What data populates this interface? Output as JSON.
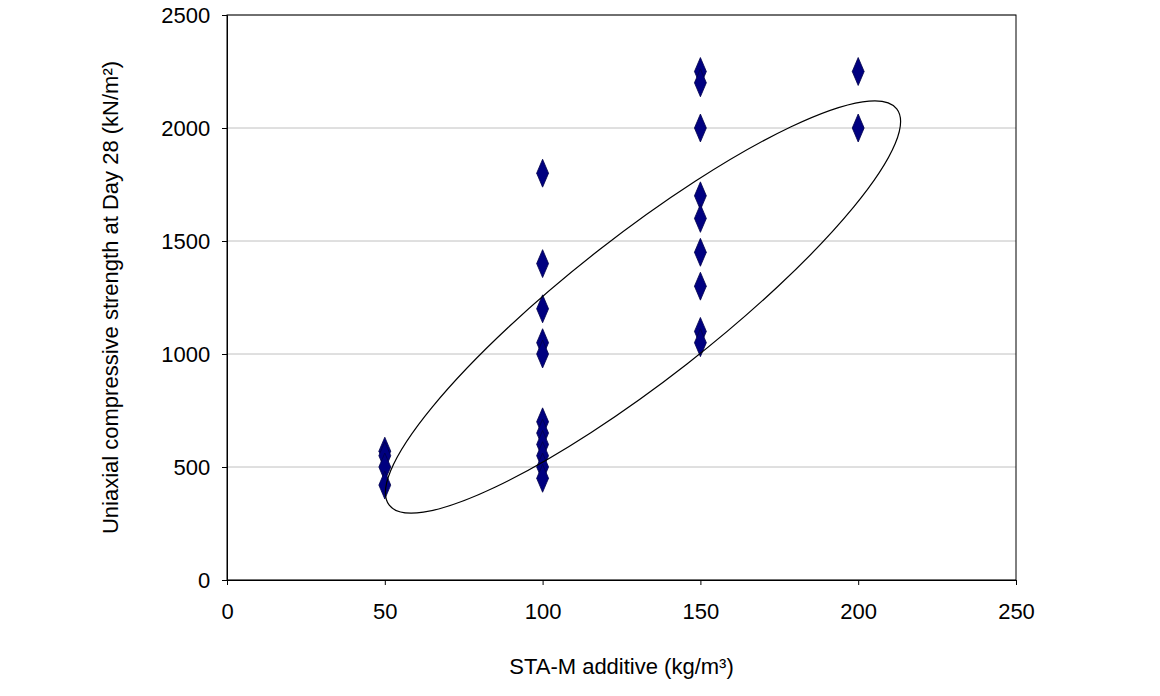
{
  "chart_data": {
    "type": "scatter",
    "x_label": "STA-M additive (kg/m³)",
    "y_label": "Uniaxial compressive strength at Day 28 (kN/m²)",
    "x": [
      50,
      50,
      50,
      50,
      100,
      100,
      100,
      100,
      100,
      100,
      100,
      100,
      100,
      100,
      100,
      150,
      150,
      150,
      150,
      150,
      150,
      150,
      150,
      150,
      200,
      200
    ],
    "values": [
      570,
      550,
      500,
      420,
      1800,
      1400,
      1200,
      1050,
      1000,
      700,
      650,
      600,
      550,
      500,
      450,
      2250,
      2200,
      2000,
      1700,
      1600,
      1450,
      1300,
      1100,
      1050,
      2250,
      2000
    ],
    "color": "#000080",
    "marker": "diamond",
    "xlim": [
      0,
      250
    ],
    "xticks": [
      0,
      50,
      100,
      150,
      200,
      250
    ],
    "ylim": [
      0,
      2500
    ],
    "yticks": [
      0,
      500,
      1000,
      1500,
      2000,
      2500
    ],
    "grid": true
  }
}
